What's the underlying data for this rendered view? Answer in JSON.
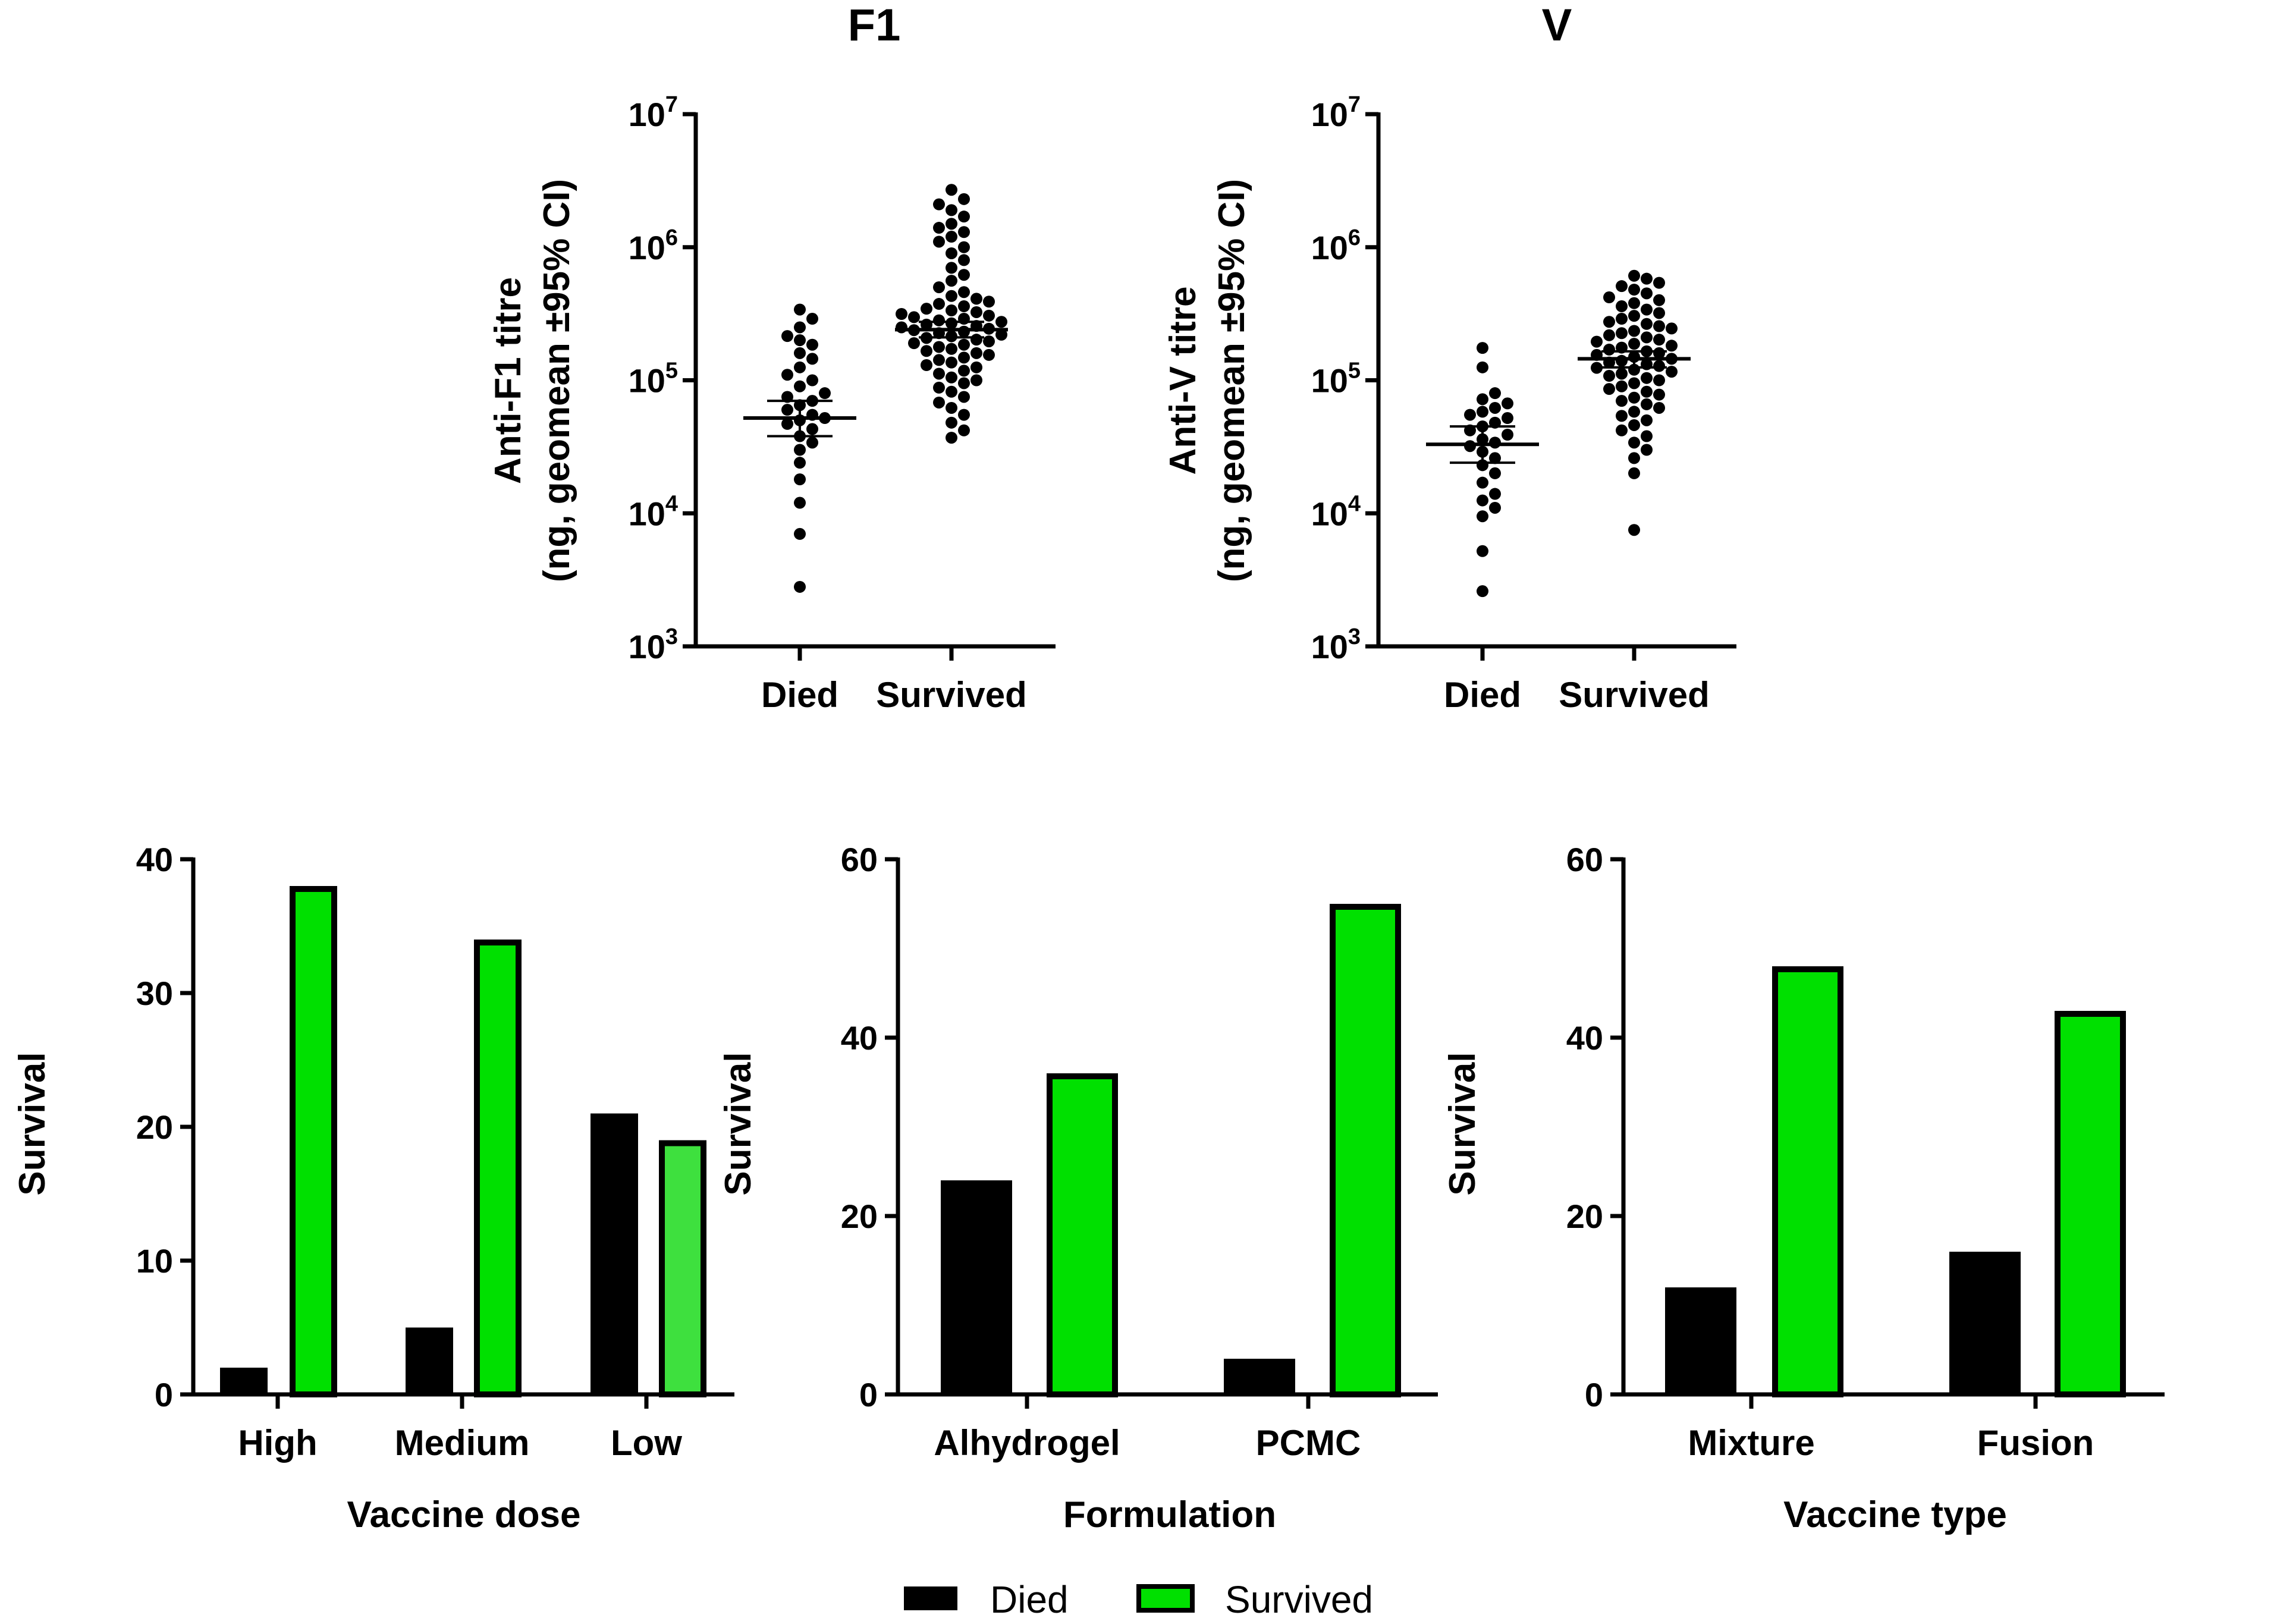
{
  "colors": {
    "died": "#000000",
    "survived": "#00e000",
    "survived_low": "#3ee03e",
    "bar_edge": "#000000"
  },
  "legend": {
    "died_label": "Died",
    "survived_label": "Survived"
  },
  "chart_data": [
    {
      "type": "scatter",
      "title": "F1",
      "ylabel_line1": "Anti-F1 titre",
      "ylabel_line2": "(ng, geomean ±95% CI)",
      "yscale": "log10",
      "ylim": [
        1000,
        10000000
      ],
      "y_ticks": [
        {
          "base": "10",
          "exp": "3"
        },
        {
          "base": "10",
          "exp": "4"
        },
        {
          "base": "10",
          "exp": "5"
        },
        {
          "base": "10",
          "exp": "6"
        },
        {
          "base": "10",
          "exp": "7"
        }
      ],
      "categories": [
        "Died",
        "Survived"
      ],
      "geomean": [
        52000,
        240000
      ],
      "ci": [
        [
          38000,
          70000
        ],
        [
          210000,
          275000
        ]
      ],
      "series": [
        {
          "name": "Died",
          "values": [
            2800,
            7000,
            12000,
            18000,
            24000,
            30000,
            34000,
            38000,
            43000,
            47000,
            50000,
            52000,
            55000,
            60000,
            65000,
            70000,
            75000,
            80000,
            90000,
            100000,
            110000,
            125000,
            145000,
            160000,
            185000,
            200000,
            215000,
            250000,
            290000,
            340000
          ]
        },
        {
          "name": "Survived",
          "values": [
            37000,
            42000,
            48000,
            55000,
            62000,
            68000,
            75000,
            82000,
            88000,
            95000,
            100000,
            105000,
            112000,
            118000,
            125000,
            130000,
            136000,
            142000,
            148000,
            155000,
            160000,
            166000,
            172000,
            178000,
            185000,
            190000,
            196000,
            202000,
            208000,
            214000,
            220000,
            226000,
            232000,
            238000,
            244000,
            250000,
            256000,
            262000,
            268000,
            275000,
            282000,
            290000,
            298000,
            306000,
            315000,
            325000,
            335000,
            345000,
            360000,
            375000,
            390000,
            410000,
            430000,
            460000,
            500000,
            560000,
            620000,
            700000,
            800000,
            900000,
            1000000,
            1100000,
            1200000,
            1300000,
            1400000,
            1500000,
            1700000,
            1900000,
            2100000,
            2300000,
            2700000
          ]
        }
      ]
    },
    {
      "type": "scatter",
      "title": "V",
      "ylabel_line1": "Anti-V titre",
      "ylabel_line2": "(ng, geomean ±95% CI)",
      "yscale": "log10",
      "ylim": [
        1000,
        10000000
      ],
      "y_ticks": [
        {
          "base": "10",
          "exp": "3"
        },
        {
          "base": "10",
          "exp": "4"
        },
        {
          "base": "10",
          "exp": "5"
        },
        {
          "base": "10",
          "exp": "6"
        },
        {
          "base": "10",
          "exp": "7"
        }
      ],
      "categories": [
        "Died",
        "Survived"
      ],
      "geomean": [
        33000,
        145000
      ],
      "ci": [
        [
          24000,
          45000
        ],
        [
          125000,
          165000
        ]
      ],
      "series": [
        {
          "name": "Died",
          "values": [
            2600,
            5200,
            9500,
            11000,
            12500,
            14000,
            17000,
            20000,
            23000,
            26000,
            29000,
            32000,
            34000,
            36000,
            39000,
            42000,
            45000,
            48000,
            52000,
            55000,
            58000,
            62000,
            67000,
            72000,
            80000,
            125000,
            175000
          ]
        },
        {
          "name": "Survived",
          "values": [
            7500,
            20000,
            26000,
            30000,
            34000,
            38000,
            42000,
            46000,
            50000,
            54000,
            58000,
            62000,
            66000,
            70000,
            74000,
            78000,
            82000,
            86000,
            90000,
            95000,
            100000,
            104000,
            108000,
            112000,
            116000,
            120000,
            124000,
            128000,
            132000,
            136000,
            140000,
            145000,
            150000,
            155000,
            160000,
            165000,
            170000,
            176000,
            182000,
            188000,
            195000,
            202000,
            210000,
            218000,
            226000,
            235000,
            245000,
            255000,
            265000,
            275000,
            290000,
            305000,
            320000,
            340000,
            360000,
            380000,
            400000,
            420000,
            450000,
            480000,
            510000,
            540000,
            580000,
            610000
          ]
        }
      ]
    },
    {
      "type": "bar",
      "xlabel": "Vaccine dose",
      "ylabel": "Survival",
      "ylim": [
        0,
        40
      ],
      "y_ticks": [
        "0",
        "10",
        "20",
        "30",
        "40"
      ],
      "categories": [
        "High",
        "Medium",
        "Low"
      ],
      "series": [
        {
          "name": "Died",
          "values": [
            2,
            5,
            21
          ]
        },
        {
          "name": "Survived",
          "values": [
            38,
            34,
            19
          ]
        }
      ]
    },
    {
      "type": "bar",
      "xlabel": "Formulation",
      "ylabel": "Survival",
      "ylim": [
        0,
        60
      ],
      "y_ticks": [
        "0",
        "20",
        "40",
        "60"
      ],
      "categories": [
        "Alhydrogel",
        "PCMC"
      ],
      "series": [
        {
          "name": "Died",
          "values": [
            24,
            4
          ]
        },
        {
          "name": "Survived",
          "values": [
            36,
            55
          ]
        }
      ]
    },
    {
      "type": "bar",
      "xlabel": "Vaccine type",
      "ylabel": "Survival",
      "ylim": [
        0,
        60
      ],
      "y_ticks": [
        "0",
        "20",
        "40",
        "60"
      ],
      "categories": [
        "Mixture",
        "Fusion"
      ],
      "series": [
        {
          "name": "Died",
          "values": [
            12,
            16
          ]
        },
        {
          "name": "Survived",
          "values": [
            48,
            43
          ]
        }
      ]
    }
  ]
}
